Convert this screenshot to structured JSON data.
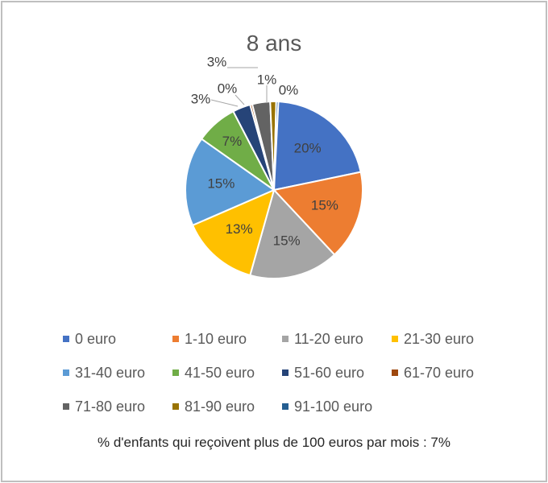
{
  "chart_data": {
    "type": "pie",
    "title": "8 ans",
    "categories": [
      "0 euro",
      "1-10 euro",
      "11-20 euro",
      "21-30 euro",
      "31-40 euro",
      "41-50 euro",
      "51-60 euro",
      "61-70 euro",
      "71-80 euro",
      "81-90 euro",
      "91-100 euro"
    ],
    "values": [
      20,
      15,
      15,
      13,
      15,
      7,
      3,
      0,
      3,
      1,
      0
    ],
    "labels": [
      "20%",
      "15%",
      "15%",
      "13%",
      "15%",
      "7%",
      "3%",
      "0%",
      "3%",
      "1%",
      "0%"
    ],
    "colors": [
      "#4472C4",
      "#ED7D31",
      "#A5A5A5",
      "#FFC000",
      "#5B9BD5",
      "#70AD47",
      "#264478",
      "#9E480E",
      "#636363",
      "#997300",
      "#255E91"
    ],
    "legend_position": "bottom"
  },
  "note": "% d'enfants qui reçoivent plus de 100 euros par mois : 7%"
}
